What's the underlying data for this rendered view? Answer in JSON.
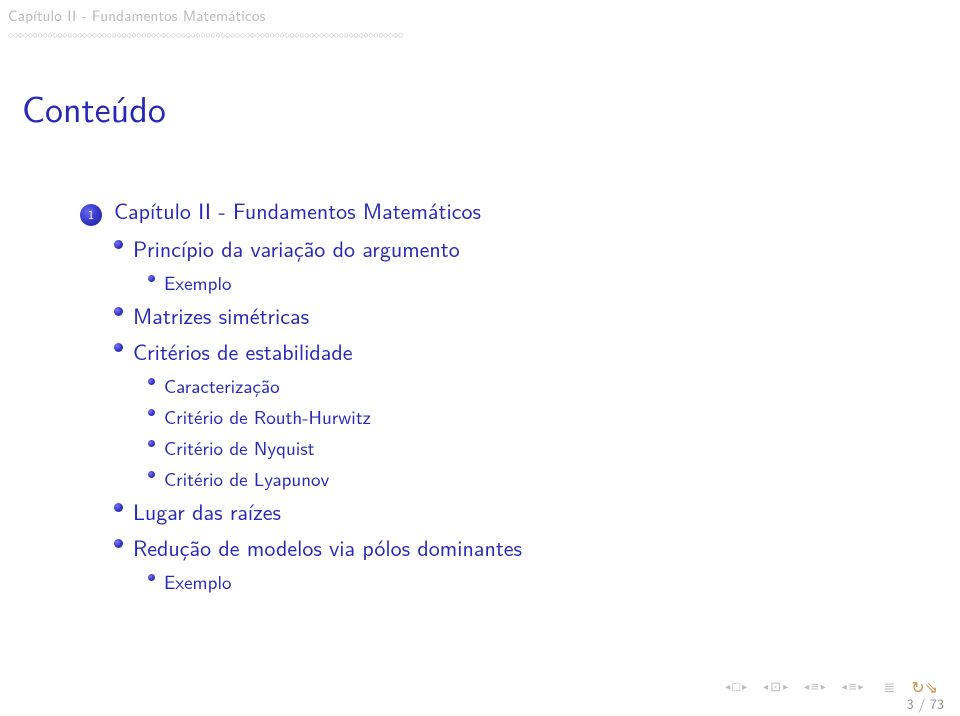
{
  "header": {
    "section": "Capítulo II - Fundamentos Matemáticos"
  },
  "title": "Conteúdo",
  "outline": {
    "number": "1",
    "label": "Capítulo II - Fundamentos Matemáticos",
    "items": [
      {
        "label": "Princípio da variação do argumento",
        "children": [
          {
            "label": "Exemplo"
          }
        ]
      },
      {
        "label": "Matrizes simétricas",
        "children": []
      },
      {
        "label": "Critérios de estabilidade",
        "children": [
          {
            "label": "Caracterização"
          },
          {
            "label": "Critério de Routh-Hurwitz"
          },
          {
            "label": "Critério de Nyquist"
          },
          {
            "label": "Critério de Lyapunov"
          }
        ]
      },
      {
        "label": "Lugar das raízes",
        "children": []
      },
      {
        "label": "Redução de modelos via pólos dominantes",
        "children": [
          {
            "label": "Exemplo"
          }
        ]
      }
    ]
  },
  "footer": {
    "page": "3 / 73"
  },
  "colors": {
    "structure": "#2828b8",
    "muted": "#b8b8b8",
    "loop": "#c8964c"
  }
}
